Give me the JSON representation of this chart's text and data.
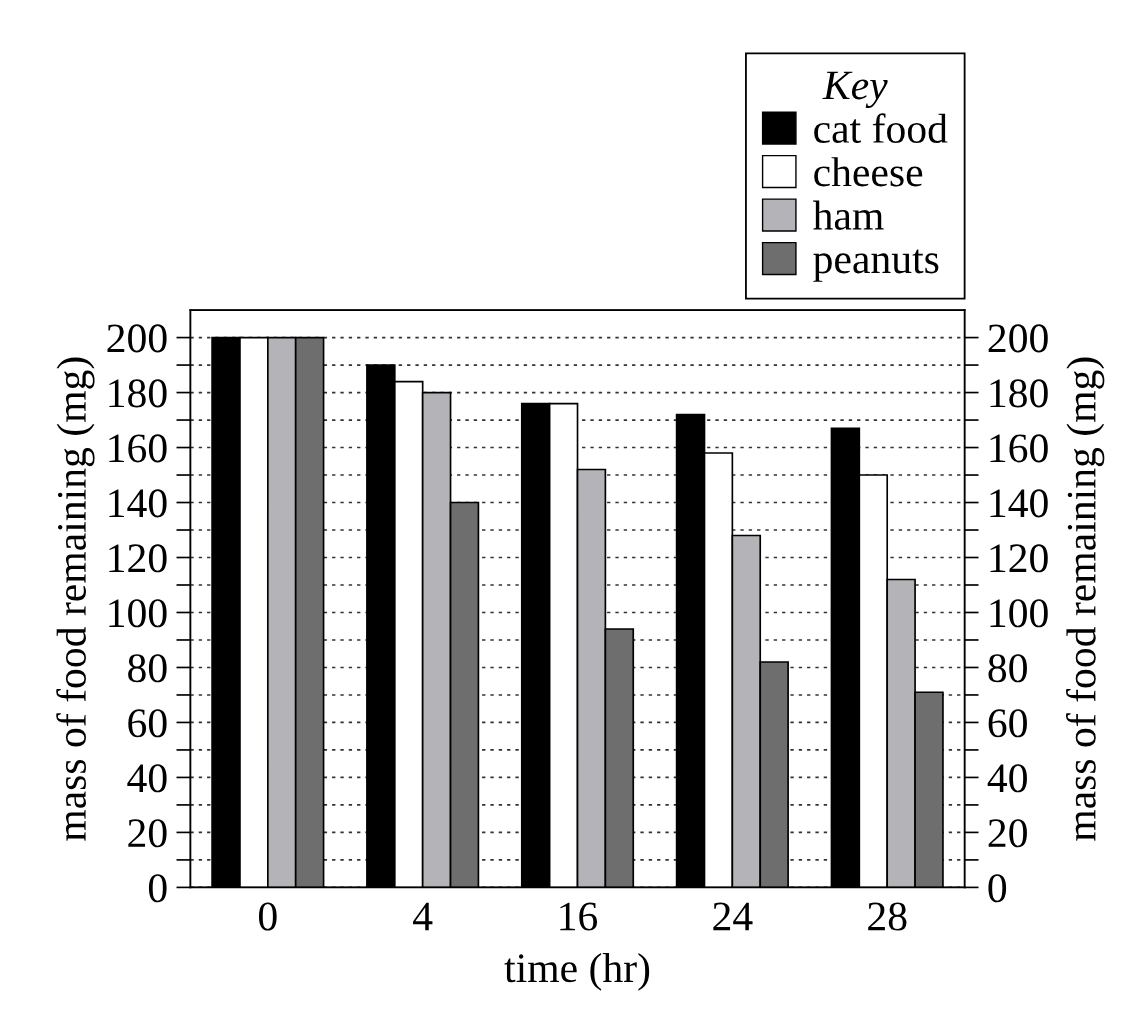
{
  "chart_data": {
    "type": "bar",
    "categories": [
      "0",
      "4",
      "16",
      "24",
      "28"
    ],
    "xlabel": "time (hr)",
    "ylabel": "mass of food remaining (mg)",
    "y2label": "mass of food remaining (mg)",
    "legend_title": "Key",
    "series": [
      {
        "name": "cat food",
        "color": "#000000",
        "values": [
          200,
          190,
          176,
          172,
          167
        ]
      },
      {
        "name": "cheese",
        "color": "#ffffff",
        "values": [
          200,
          184,
          176,
          158,
          150
        ]
      },
      {
        "name": "ham",
        "color": "#b4b4b8",
        "values": [
          200,
          180,
          152,
          128,
          112
        ]
      },
      {
        "name": "peanuts",
        "color": "#6e6e6e",
        "values": [
          200,
          140,
          94,
          82,
          71
        ]
      }
    ],
    "ylim": [
      0,
      210
    ],
    "yticks": [
      0,
      {
        "value": 10,
        "label": null
      },
      20,
      {
        "value": 30,
        "label": null
      },
      40,
      {
        "value": 50,
        "label": null
      },
      60,
      {
        "value": 70,
        "label": null
      },
      80,
      {
        "value": 90,
        "label": null
      },
      100,
      {
        "value": 110,
        "label": null
      },
      120,
      {
        "value": 130,
        "label": null
      },
      140,
      {
        "value": 150,
        "label": null
      },
      160,
      {
        "value": 170,
        "label": null
      },
      180,
      {
        "value": 190,
        "label": null
      },
      200
    ],
    "y2lim": [
      0,
      210
    ],
    "y2ticks": [
      0,
      {
        "value": 10,
        "label": null
      },
      20,
      {
        "value": 30,
        "label": null
      },
      40,
      {
        "value": 50,
        "label": null
      },
      60,
      {
        "value": 70,
        "label": null
      },
      80,
      {
        "value": 90,
        "label": null
      },
      100,
      {
        "value": 110,
        "label": null
      },
      120,
      {
        "value": 130,
        "label": null
      },
      140,
      {
        "value": 150,
        "label": null
      },
      160,
      {
        "value": 170,
        "label": null
      },
      180,
      {
        "value": 190,
        "label": null
      },
      200
    ],
    "grid": "y",
    "legend": "top right"
  }
}
